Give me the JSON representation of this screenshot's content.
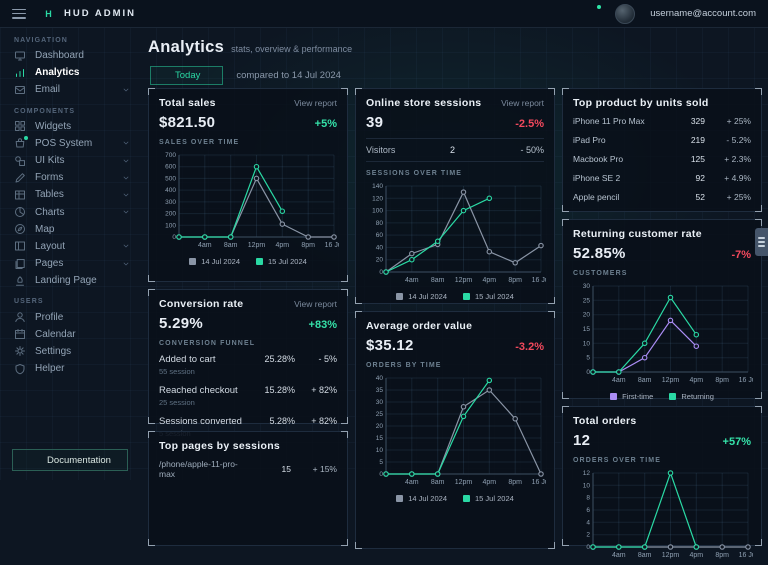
{
  "topbar": {
    "brand": "HUD ADMIN",
    "logo_letter": "H",
    "account": "username@account.com"
  },
  "sidebar": {
    "sections": [
      {
        "label": "Navigation",
        "items": [
          {
            "label": "Dashboard",
            "icon": "dashboard"
          },
          {
            "label": "Analytics",
            "icon": "analytics",
            "active": true
          },
          {
            "label": "Email",
            "icon": "mail",
            "chevron": true
          }
        ]
      },
      {
        "label": "Components",
        "items": [
          {
            "label": "Widgets",
            "icon": "widgets"
          },
          {
            "label": "POS System",
            "icon": "pos",
            "chevron": true,
            "dot": true
          },
          {
            "label": "UI Kits",
            "icon": "uikits",
            "chevron": true
          },
          {
            "label": "Forms",
            "icon": "forms",
            "chevron": true
          },
          {
            "label": "Tables",
            "icon": "tables",
            "chevron": true
          },
          {
            "label": "Charts",
            "icon": "charts",
            "chevron": true
          },
          {
            "label": "Map",
            "icon": "map"
          },
          {
            "label": "Layout",
            "icon": "layout",
            "chevron": true
          },
          {
            "label": "Pages",
            "icon": "pages",
            "chevron": true
          },
          {
            "label": "Landing Page",
            "icon": "landing"
          }
        ]
      },
      {
        "label": "Users",
        "items": [
          {
            "label": "Profile",
            "icon": "profile"
          },
          {
            "label": "Calendar",
            "icon": "calendar"
          },
          {
            "label": "Settings",
            "icon": "settings"
          },
          {
            "label": "Helper",
            "icon": "helper"
          }
        ]
      }
    ],
    "docs_button": "Documentation"
  },
  "header": {
    "title": "Analytics",
    "subtitle": "stats, overview & performance",
    "period_button": "Today",
    "compare_text": "compared to 14 Jul 2024"
  },
  "colors": {
    "accent_teal": "#2ad9a4",
    "positive": "#35e2a9",
    "negative": "#f2495d",
    "series_gray": "#8a95a6",
    "series_purple": "#ab8df5"
  },
  "cards": {
    "total_sales": {
      "title": "Total sales",
      "link": "View report",
      "value": "$821.50",
      "delta": "+5%",
      "delta_dir": "up",
      "chart_label": "SALES OVER TIME",
      "chart": {
        "type": "line",
        "ymax": 700,
        "ystep": 100,
        "slots": 7,
        "h": 100,
        "xlabels": [
          "4am",
          "8am",
          "12pm",
          "4pm",
          "8pm",
          "16 Jul"
        ],
        "series": [
          {
            "name": "14 Jul 2024",
            "color": "#8a95a6",
            "values": [
              0,
              0,
              0,
              500,
              110,
              0,
              0
            ]
          },
          {
            "name": "15 Jul 2024",
            "color": "#2ad9a4",
            "values": [
              0,
              0,
              0,
              600,
              220
            ]
          }
        ]
      }
    },
    "online_sessions": {
      "title": "Online store sessions",
      "link": "View report",
      "value": "39",
      "delta": "-2.5%",
      "delta_dir": "down",
      "visitors_row": {
        "label": "Visitors",
        "value": "2",
        "delta": "- 50%"
      },
      "chart_label": "SESSIONS OVER TIME",
      "chart": {
        "type": "line",
        "ymax": 140,
        "ystep": 20,
        "slots": 7,
        "h": 104,
        "xlabels": [
          "4am",
          "8am",
          "12pm",
          "4pm",
          "8pm",
          "16 Jul"
        ],
        "series": [
          {
            "name": "14 Jul 2024",
            "color": "#8a95a6",
            "values": [
              0,
              30,
              45,
              130,
              33,
              15,
              43
            ]
          },
          {
            "name": "15 Jul 2024",
            "color": "#2ad9a4",
            "values": [
              0,
              20,
              50,
              100,
              120
            ]
          }
        ]
      }
    },
    "conversion": {
      "title": "Conversion rate",
      "link": "View report",
      "value": "5.29%",
      "delta": "+83%",
      "delta_dir": "up",
      "chart_label": "CONVERSION FUNNEL",
      "rows": [
        {
          "label": "Added to cart",
          "sub": "55 session",
          "value": "25.28%",
          "delta": "- 5%"
        },
        {
          "label": "Reached checkout",
          "sub": "25 session",
          "value": "15.28%",
          "delta": "+ 82%"
        },
        {
          "label": "Sessions converted",
          "sub": "5 session",
          "value": "5.28%",
          "delta": "+ 82%"
        }
      ]
    },
    "top_pages": {
      "title": "Top pages by sessions",
      "rows": [
        {
          "label": "/phone/apple-11-pro-max",
          "value": "15",
          "delta": "+ 15%"
        }
      ]
    },
    "avg_order": {
      "title": "Average order value",
      "value": "$35.12",
      "delta": "-3.2%",
      "delta_dir": "down",
      "chart_label": "ORDERS BY TIME",
      "chart": {
        "type": "line",
        "ymax": 40,
        "ystep": 5,
        "slots": 7,
        "h": 114,
        "xlabels": [
          "4am",
          "8am",
          "12pm",
          "4pm",
          "8pm",
          "16 Jul"
        ],
        "series": [
          {
            "name": "14 Jul 2024",
            "color": "#8a95a6",
            "values": [
              0,
              0,
              0,
              28,
              35,
              23,
              0
            ]
          },
          {
            "name": "15 Jul 2024",
            "color": "#2ad9a4",
            "values": [
              0,
              0,
              0,
              24,
              39
            ]
          }
        ]
      }
    },
    "top_products": {
      "title": "Top product by units sold",
      "rows": [
        {
          "label": "iPhone 11 Pro Max",
          "value": "329",
          "delta": "+ 25%"
        },
        {
          "label": "iPad Pro",
          "value": "219",
          "delta": "- 5.2%"
        },
        {
          "label": "Macbook Pro",
          "value": "125",
          "delta": "+ 2.3%"
        },
        {
          "label": "iPhone SE 2",
          "value": "92",
          "delta": "+ 4.9%"
        },
        {
          "label": "Apple pencil",
          "value": "52",
          "delta": "+ 25%"
        }
      ]
    },
    "returning": {
      "title": "Returning customer rate",
      "value": "52.85%",
      "delta": "-7%",
      "delta_dir": "down",
      "chart_label": "CUSTOMERS",
      "chart": {
        "type": "line",
        "ymax": 30,
        "ystep": 5,
        "slots": 7,
        "h": 104,
        "xlabels": [
          "4am",
          "8am",
          "12pm",
          "4pm",
          "8pm",
          "16 Jul"
        ],
        "series": [
          {
            "name": "First-time",
            "color": "#ab8df5",
            "values": [
              0,
              0,
              5,
              18,
              9
            ]
          },
          {
            "name": "Returning",
            "color": "#2ad9a4",
            "values": [
              0,
              0,
              10,
              26,
              13
            ]
          }
        ]
      }
    },
    "total_orders": {
      "title": "Total orders",
      "value": "12",
      "delta": "+57%",
      "delta_dir": "up",
      "chart_label": "ORDERS OVER TIME",
      "chart": {
        "type": "line",
        "ymax": 12,
        "ystep": 2,
        "slots": 7,
        "h": 92,
        "xlabels": [
          "4am",
          "8am",
          "12pm",
          "4pm",
          "8pm",
          "16 Jul"
        ],
        "series": [
          {
            "name": "14 Jul 2024",
            "color": "#8a95a6",
            "values": [
              0,
              0,
              0,
              0,
              0,
              0,
              0
            ]
          },
          {
            "name": "15 Jul 2024",
            "color": "#2ad9a4",
            "values": [
              0,
              0,
              0,
              12,
              0
            ]
          }
        ]
      }
    }
  }
}
